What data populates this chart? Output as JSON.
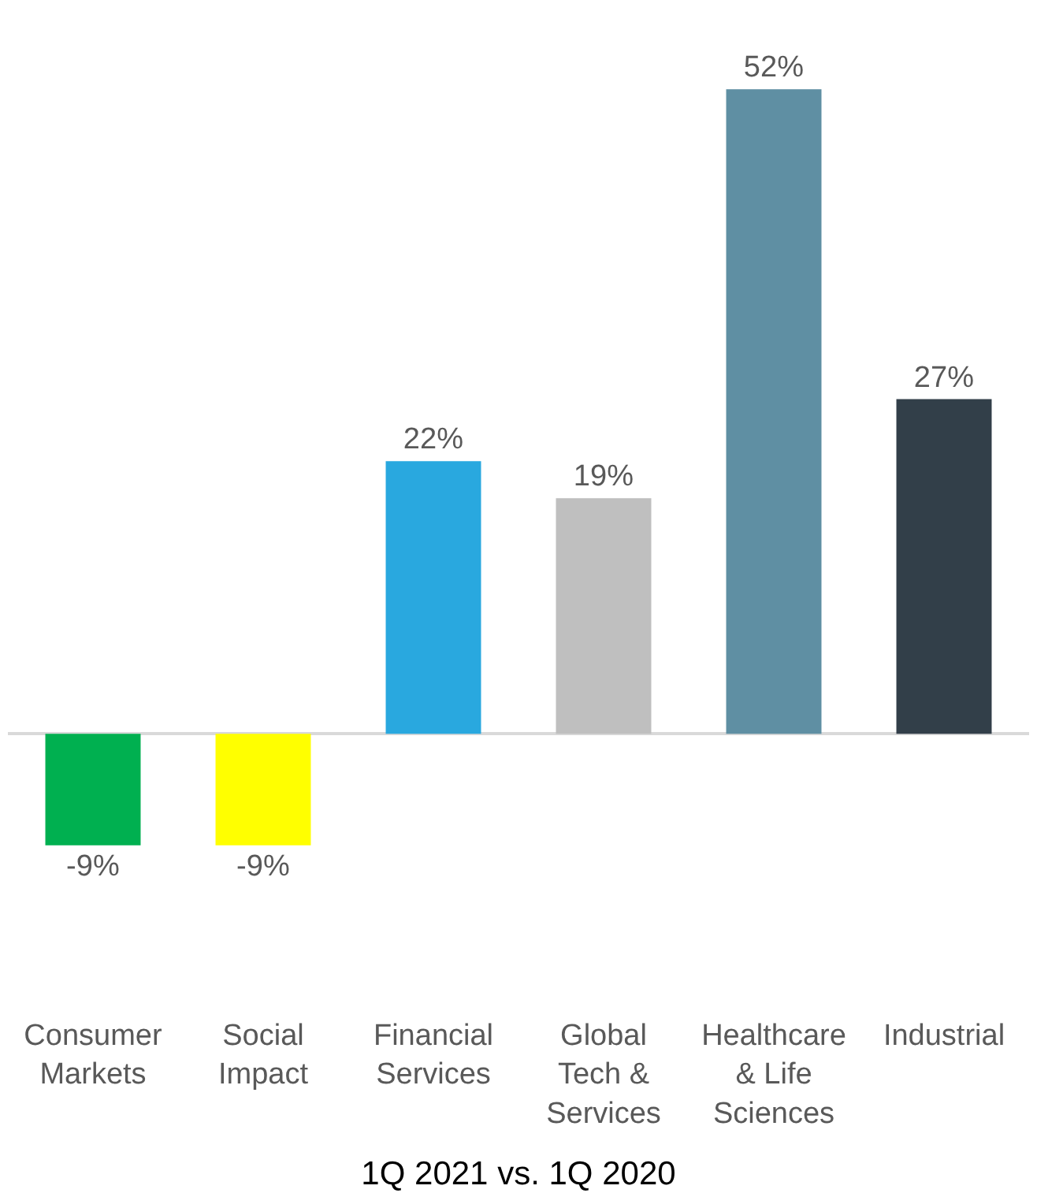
{
  "chart_data": {
    "type": "bar",
    "xlabel": "1Q 2021 vs. 1Q 2020",
    "categories": [
      "Consumer Markets",
      "Social Impact",
      "Financial Services",
      "Global Tech & Services",
      "Healthcare & Life Sciences",
      "Industrial"
    ],
    "values": [
      -9,
      -9,
      22,
      19,
      52,
      27
    ],
    "colors": [
      "#00b050",
      "#ffff00",
      "#29a8df",
      "#bfbfbf",
      "#5f8fa3",
      "#323f49"
    ],
    "value_labels": [
      "-9%",
      "-9%",
      "22%",
      "19%",
      "52%",
      "27%"
    ],
    "legend": false
  }
}
